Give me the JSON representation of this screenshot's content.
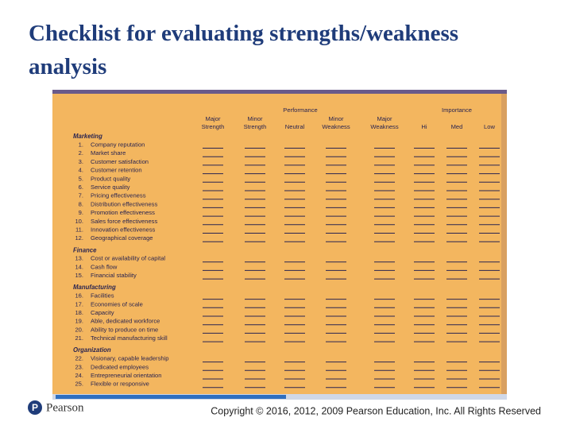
{
  "title": "Checklist for evaluating strengths/weakness analysis",
  "checklist": {
    "performance_label": "Performance",
    "importance_label": "Importance",
    "columns": [
      [
        "Major",
        "Strength"
      ],
      [
        "Minor",
        "Strength"
      ],
      [
        "Neutral"
      ],
      [
        "Minor",
        "Weakness"
      ],
      [
        "Major",
        "Weakness"
      ],
      [
        "Hi"
      ],
      [
        "Med"
      ],
      [
        "Low"
      ]
    ],
    "sections": [
      {
        "name": "Marketing",
        "items": [
          {
            "number": "1.",
            "label": "Company reputation"
          },
          {
            "number": "2.",
            "label": "Market share"
          },
          {
            "number": "3.",
            "label": "Customer satisfaction"
          },
          {
            "number": "4.",
            "label": "Customer retention"
          },
          {
            "number": "5.",
            "label": "Product quality"
          },
          {
            "number": "6.",
            "label": "Service quality"
          },
          {
            "number": "7.",
            "label": "Pricing effectiveness"
          },
          {
            "number": "8.",
            "label": "Distribution effectiveness"
          },
          {
            "number": "9.",
            "label": "Promotion effectiveness"
          },
          {
            "number": "10.",
            "label": "Sales force effectiveness"
          },
          {
            "number": "11.",
            "label": "Innovation effectiveness"
          },
          {
            "number": "12.",
            "label": "Geographical coverage"
          }
        ]
      },
      {
        "name": "Finance",
        "items": [
          {
            "number": "13.",
            "label": "Cost or availability of capital"
          },
          {
            "number": "14.",
            "label": "Cash flow"
          },
          {
            "number": "15.",
            "label": "Financial stability"
          }
        ]
      },
      {
        "name": "Manufacturing",
        "items": [
          {
            "number": "16.",
            "label": "Facilities"
          },
          {
            "number": "17.",
            "label": "Economies of scale"
          },
          {
            "number": "18.",
            "label": "Capacity"
          },
          {
            "number": "19.",
            "label": "Able, dedicated workforce"
          },
          {
            "number": "20.",
            "label": "Ability to produce on time"
          },
          {
            "number": "21.",
            "label": "Technical manufacturing skill"
          }
        ]
      },
      {
        "name": "Organization",
        "items": [
          {
            "number": "22.",
            "label": "Visionary, capable leadership"
          },
          {
            "number": "23.",
            "label": "Dedicated employees"
          },
          {
            "number": "24.",
            "label": "Entrepreneurial orientation"
          },
          {
            "number": "25.",
            "label": "Flexible or responsive"
          }
        ]
      }
    ]
  },
  "footer": {
    "brand": "Pearson",
    "copyright": "Copyright © 2016, 2012, 2009 Pearson Education, Inc. All Rights Reserved"
  }
}
